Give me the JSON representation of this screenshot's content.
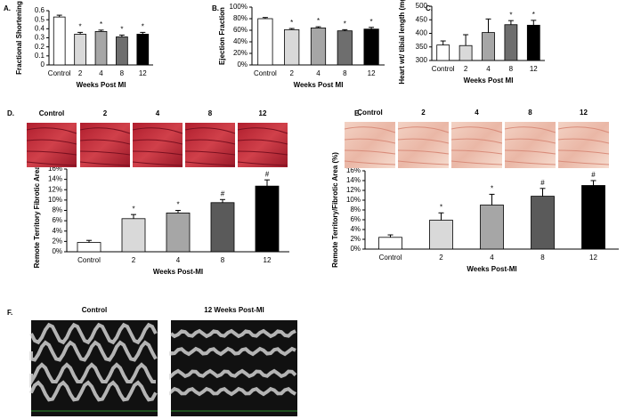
{
  "chart_data": [
    {
      "type": "bar",
      "panel": "A.",
      "y_label": "Fractional Shortening",
      "x_label": "Weeks Post MI",
      "categories": [
        "Control",
        "2",
        "4",
        "8",
        "12"
      ],
      "values": [
        0.53,
        0.34,
        0.37,
        0.31,
        0.34
      ],
      "errors": [
        0.02,
        0.02,
        0.015,
        0.02,
        0.02
      ],
      "annotations": [
        null,
        "*",
        "*",
        "*",
        "*"
      ],
      "colors": [
        "#ffffff",
        "#d9d9d9",
        "#a6a6a6",
        "#6e6e6e",
        "#000000"
      ],
      "ylim": [
        0,
        0.6
      ],
      "yticks": [
        0,
        0.1,
        0.2,
        0.3,
        0.4,
        0.5,
        0.6
      ]
    },
    {
      "type": "bar",
      "panel": "B.",
      "y_label": "Ejection Fraction",
      "x_label": "Weeks Post MI",
      "categories": [
        "Control",
        "2",
        "4",
        "8",
        "12"
      ],
      "values": [
        80,
        61,
        64,
        59,
        62
      ],
      "errors": [
        2,
        2,
        2,
        2,
        3
      ],
      "annotations": [
        null,
        "*",
        "*",
        "*",
        "*"
      ],
      "colors": [
        "#ffffff",
        "#d9d9d9",
        "#a6a6a6",
        "#6e6e6e",
        "#000000"
      ],
      "ylim": [
        0,
        100
      ],
      "yticks": [
        {
          "value": 0,
          "label": "0%"
        },
        {
          "value": 20,
          "label": "20%"
        },
        {
          "value": 40,
          "label": "40%"
        },
        {
          "value": 60,
          "label": "60%"
        },
        {
          "value": 80,
          "label": "80%"
        },
        {
          "value": 100,
          "label": "100%"
        }
      ]
    },
    {
      "type": "bar",
      "panel": "C.",
      "y_label": "Heart wt/ tibial length (mg/cm)",
      "x_label": "Weeks Post MI",
      "categories": [
        "Control",
        "2",
        "4",
        "8",
        "12"
      ],
      "values": [
        357,
        355,
        403,
        432,
        430
      ],
      "errors": [
        15,
        40,
        50,
        15,
        18
      ],
      "annotations": [
        null,
        null,
        null,
        "*",
        "*"
      ],
      "colors": [
        "#ffffff",
        "#d9d9d9",
        "#a6a6a6",
        "#6e6e6e",
        "#000000"
      ],
      "ylim": [
        300,
        500
      ],
      "yticks": [
        300,
        350,
        400,
        450,
        500
      ]
    },
    {
      "type": "bar",
      "panel": "D.",
      "y_label": "Remote Territory Fibrotic Area (%)",
      "x_label": "Weeks Post-MI",
      "categories": [
        "Control",
        "2",
        "4",
        "8",
        "12"
      ],
      "values": [
        1.8,
        6.4,
        7.5,
        9.5,
        12.7
      ],
      "errors": [
        0.4,
        0.8,
        0.5,
        0.6,
        1.2
      ],
      "annotations": [
        null,
        "*",
        "*",
        "#",
        "#"
      ],
      "colors": [
        "#ffffff",
        "#d9d9d9",
        "#a6a6a6",
        "#5a5a5a",
        "#000000"
      ],
      "ylim": [
        0,
        16
      ],
      "yticks": [
        {
          "value": 0,
          "label": "0%"
        },
        {
          "value": 2,
          "label": "2%"
        },
        {
          "value": 4,
          "label": "4%"
        },
        {
          "value": 6,
          "label": "6%"
        },
        {
          "value": 8,
          "label": "8%"
        },
        {
          "value": 10,
          "label": "10%"
        },
        {
          "value": 12,
          "label": "12%"
        },
        {
          "value": 14,
          "label": "14%"
        },
        {
          "value": 16,
          "label": "16%"
        }
      ]
    },
    {
      "type": "bar",
      "panel": "E.",
      "y_label": "Remote Territory/Fibrotic Area (%)",
      "x_label": "Weeks Post-MI",
      "categories": [
        "Control",
        "2",
        "4",
        "8",
        "12"
      ],
      "values": [
        2.4,
        5.9,
        9.0,
        10.8,
        13.0
      ],
      "errors": [
        0.5,
        1.5,
        2.2,
        1.6,
        1.0
      ],
      "annotations": [
        null,
        "*",
        "*",
        "#",
        "#"
      ],
      "colors": [
        "#ffffff",
        "#d9d9d9",
        "#a6a6a6",
        "#5a5a5a",
        "#000000"
      ],
      "ylim": [
        0,
        16
      ],
      "yticks": [
        {
          "value": 0,
          "label": "0%"
        },
        {
          "value": 2,
          "label": "2%"
        },
        {
          "value": 4,
          "label": "4%"
        },
        {
          "value": 6,
          "label": "6%"
        },
        {
          "value": 8,
          "label": "8%"
        },
        {
          "value": 10,
          "label": "10%"
        },
        {
          "value": 12,
          "label": "12%"
        },
        {
          "value": 14,
          "label": "14%"
        },
        {
          "value": 16,
          "label": "16%"
        }
      ]
    }
  ],
  "histology": [
    {
      "labels": [
        "Control",
        "2",
        "4",
        "8",
        "12"
      ]
    },
    {
      "labels": [
        "Control",
        "2",
        "4",
        "8",
        "12"
      ]
    }
  ],
  "echo": {
    "panel": "F.",
    "labels": [
      "Control",
      "12 Weeks Post-MI"
    ]
  }
}
